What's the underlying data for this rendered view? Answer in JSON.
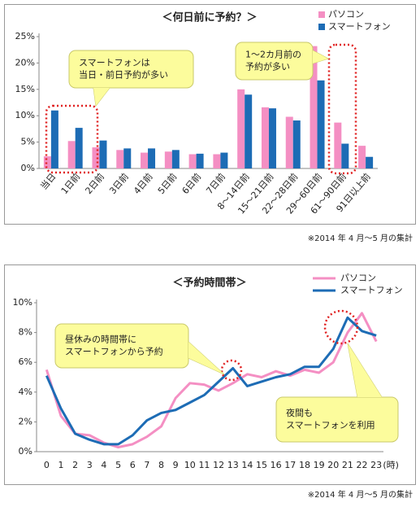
{
  "chart_data": [
    {
      "type": "bar",
      "title": "＜何日前に予約？＞",
      "categories": [
        "当日",
        "1日前",
        "2日前",
        "3日前",
        "4日前",
        "5日前",
        "6日前",
        "7日前",
        "8～14日前",
        "15～21日前",
        "22～28日前",
        "29～60日前",
        "61～90日前",
        "91日以上前"
      ],
      "series": [
        {
          "name": "パソコン",
          "color": "#f48fc3",
          "values": [
            2.3,
            5.2,
            4.0,
            3.5,
            3.0,
            3.2,
            2.7,
            2.7,
            15.0,
            11.6,
            9.8,
            23.2,
            8.7,
            4.3
          ]
        },
        {
          "name": "スマートフォン",
          "color": "#1d6cb5",
          "values": [
            11.0,
            7.7,
            5.3,
            3.8,
            3.8,
            3.5,
            2.8,
            3.0,
            14.0,
            11.4,
            9.1,
            16.7,
            4.7,
            2.2
          ]
        }
      ],
      "ylim": [
        0,
        25
      ],
      "yticks": [
        {
          "value": 0,
          "label": "0%"
        },
        {
          "value": 5,
          "label": "5%"
        },
        {
          "value": 10,
          "label": "10%"
        },
        {
          "value": 15,
          "label": "15%"
        },
        {
          "value": 20,
          "label": "20%"
        },
        {
          "value": 25,
          "label": "25%"
        }
      ],
      "grid": false,
      "legend": "upper right",
      "annotations": [
        [
          "スマートフォンは",
          "当日・前日予約が多い"
        ],
        [
          "1～2カ月前の",
          "予約が多い"
        ]
      ],
      "note": "※2014 年 4 月～5 月の集計"
    },
    {
      "type": "line",
      "title": "＜予約時間帯＞",
      "x": [
        0,
        1,
        2,
        3,
        4,
        5,
        6,
        7,
        8,
        9,
        10,
        11,
        12,
        13,
        14,
        15,
        16,
        17,
        18,
        19,
        20,
        21,
        22,
        23
      ],
      "xlabel": "(時)",
      "series": [
        {
          "name": "パソコン",
          "color": "#f48fc3",
          "values": [
            5.5,
            2.4,
            1.2,
            1.1,
            0.6,
            0.3,
            0.5,
            1.0,
            1.7,
            3.6,
            4.6,
            4.5,
            4.1,
            4.6,
            5.2,
            5.0,
            5.4,
            5.1,
            5.5,
            5.3,
            6.0,
            8.0,
            9.3,
            7.4
          ]
        },
        {
          "name": "スマートフォン",
          "color": "#1d6cb5",
          "values": [
            5.1,
            2.9,
            1.2,
            0.8,
            0.5,
            0.5,
            1.1,
            2.1,
            2.6,
            2.8,
            3.3,
            3.8,
            4.7,
            5.6,
            4.4,
            4.7,
            5.0,
            5.2,
            5.7,
            5.7,
            6.9,
            9.0,
            8.1,
            7.8
          ]
        }
      ],
      "xlim": [
        -0.7,
        23.5
      ],
      "ylim": [
        0,
        10
      ],
      "yticks": [
        {
          "value": 0,
          "label": "0%"
        },
        {
          "value": 2,
          "label": "2%"
        },
        {
          "value": 4,
          "label": "4%"
        },
        {
          "value": 6,
          "label": "6%"
        },
        {
          "value": 8,
          "label": "8%"
        },
        {
          "value": 10,
          "label": "10%"
        }
      ],
      "grid": false,
      "legend": "upper right",
      "annotations": [
        [
          "昼休みの時間帯に",
          "スマートフォンから予約"
        ],
        [
          "夜間も",
          "スマートフォンを利用"
        ]
      ],
      "note": "※2014 年 4 月～5 月の集計"
    }
  ]
}
